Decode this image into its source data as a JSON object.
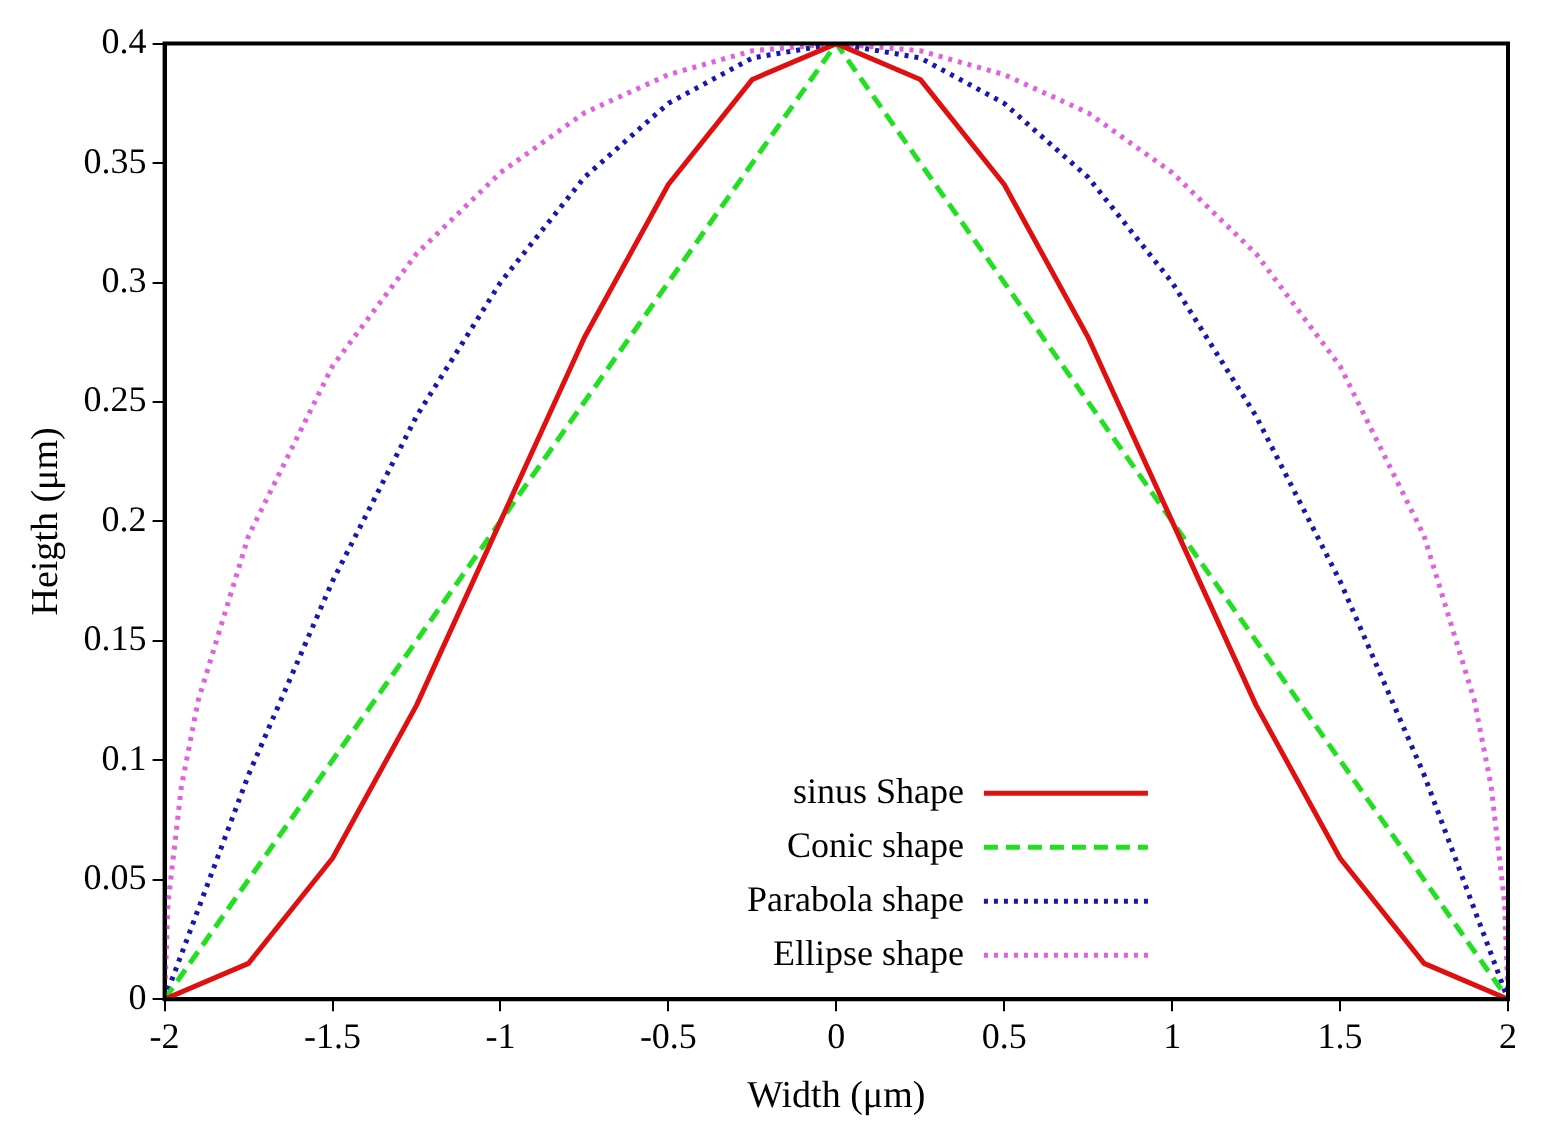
{
  "chart_data": {
    "type": "line",
    "xlabel": "Width (μm)",
    "ylabel": "Heigth (μm)",
    "xlim": [
      -2,
      2
    ],
    "ylim": [
      0,
      0.4
    ],
    "xticks": [
      -2,
      -1.5,
      -1,
      -0.5,
      0,
      0.5,
      1,
      1.5,
      2
    ],
    "yticks": [
      0,
      0.05,
      0.1,
      0.15,
      0.2,
      0.25,
      0.3,
      0.35,
      0.4
    ],
    "grid": false,
    "legend": "bottom",
    "marker": "none",
    "series": [
      {
        "name": "sinus Shape",
        "color": "#e01010",
        "line_style": "solid",
        "x": [
          -2,
          -1.75,
          -1.5,
          -1.25,
          -1,
          -0.75,
          -0.5,
          -0.25,
          0,
          0.25,
          0.5,
          0.75,
          1,
          1.25,
          1.5,
          1.75,
          2
        ],
        "values": [
          0,
          0.015,
          0.059,
          0.123,
          0.2,
          0.277,
          0.341,
          0.385,
          0.4,
          0.385,
          0.341,
          0.277,
          0.2,
          0.123,
          0.059,
          0.015,
          0
        ]
      },
      {
        "name": "Conic shape",
        "color": "#20e020",
        "line_style": "dashed",
        "x": [
          -2,
          0,
          2
        ],
        "values": [
          0,
          0.4,
          0
        ]
      },
      {
        "name": "Parabola shape",
        "color": "#1818b0",
        "line_style": "dotted",
        "x": [
          -2,
          -1.75,
          -1.5,
          -1.25,
          -1,
          -0.75,
          -0.5,
          -0.25,
          0,
          0.25,
          0.5,
          0.75,
          1,
          1.25,
          1.5,
          1.75,
          2
        ],
        "values": [
          0,
          0.094,
          0.175,
          0.244,
          0.3,
          0.344,
          0.375,
          0.394,
          0.4,
          0.394,
          0.375,
          0.344,
          0.3,
          0.244,
          0.175,
          0.094,
          0
        ]
      },
      {
        "name": "Ellipse shape",
        "color": "#e060e0",
        "line_style": "dotted",
        "x": [
          -2,
          -1.99,
          -1.95,
          -1.9,
          -1.75,
          -1.5,
          -1.25,
          -1,
          -0.75,
          -0.5,
          -0.25,
          0,
          0.25,
          0.5,
          0.75,
          1,
          1.25,
          1.5,
          1.75,
          1.9,
          1.95,
          1.99,
          2
        ],
        "values": [
          0,
          0.04,
          0.089,
          0.125,
          0.194,
          0.265,
          0.312,
          0.346,
          0.371,
          0.387,
          0.397,
          0.4,
          0.397,
          0.387,
          0.371,
          0.346,
          0.312,
          0.265,
          0.194,
          0.125,
          0.089,
          0.04,
          0
        ]
      }
    ]
  }
}
